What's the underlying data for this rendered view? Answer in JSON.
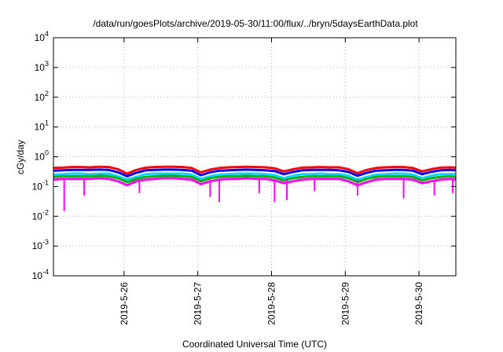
{
  "chart_data": {
    "type": "line",
    "title": "/data/run/goesPlots/archive/2019-05-30/11:00/flux/../bryn/5daysEarthData.plot",
    "xlabel": "Coordinated Universal Time (UTC)",
    "ylabel": "cGy/day",
    "y_scale": "log",
    "ylim": [
      0.0001,
      10000
    ],
    "xlim": [
      "2019-05-25T01:00",
      "2019-05-30T12:00"
    ],
    "grid": true,
    "y_ticks": [
      {
        "base": "10",
        "exp": "-4"
      },
      {
        "base": "10",
        "exp": "-3"
      },
      {
        "base": "10",
        "exp": "-2"
      },
      {
        "base": "10",
        "exp": "-1"
      },
      {
        "base": "10",
        "exp": "0"
      },
      {
        "base": "10",
        "exp": "1"
      },
      {
        "base": "10",
        "exp": "2"
      },
      {
        "base": "10",
        "exp": "3"
      },
      {
        "base": "10",
        "exp": "4"
      }
    ],
    "x_ticks": [
      "2019-5-26",
      "2019-5-27",
      "2019-5-28",
      "2019-5-29",
      "2019-5-30"
    ],
    "x_tick_dates": [
      "2019-05-26T00:00",
      "2019-05-27T00:00",
      "2019-05-28T00:00",
      "2019-05-29T00:00",
      "2019-05-30T00:00"
    ],
    "x": [
      "2019-05-25T01:00",
      "2019-05-25T04:00",
      "2019-05-25T07:00",
      "2019-05-25T10:00",
      "2019-05-25T13:00",
      "2019-05-25T16:00",
      "2019-05-25T19:00",
      "2019-05-25T22:00",
      "2019-05-26T01:00",
      "2019-05-26T04:00",
      "2019-05-26T07:00",
      "2019-05-26T10:00",
      "2019-05-26T13:00",
      "2019-05-26T16:00",
      "2019-05-26T19:00",
      "2019-05-26T22:00",
      "2019-05-27T01:00",
      "2019-05-27T04:00",
      "2019-05-27T07:00",
      "2019-05-27T10:00",
      "2019-05-27T13:00",
      "2019-05-27T16:00",
      "2019-05-27T19:00",
      "2019-05-27T22:00",
      "2019-05-28T01:00",
      "2019-05-28T04:00",
      "2019-05-28T07:00",
      "2019-05-28T10:00",
      "2019-05-28T13:00",
      "2019-05-28T16:00",
      "2019-05-28T19:00",
      "2019-05-28T22:00",
      "2019-05-29T01:00",
      "2019-05-29T04:00",
      "2019-05-29T07:00",
      "2019-05-29T10:00",
      "2019-05-29T13:00",
      "2019-05-29T16:00",
      "2019-05-29T19:00",
      "2019-05-29T22:00",
      "2019-05-30T01:00",
      "2019-05-30T04:00",
      "2019-05-30T07:00",
      "2019-05-30T10:00",
      "2019-05-30T12:00"
    ],
    "series": [
      {
        "color": "#ff0000",
        "values": [
          0.42,
          0.43,
          0.45,
          0.45,
          0.44,
          0.46,
          0.45,
          0.38,
          0.27,
          0.36,
          0.43,
          0.45,
          0.46,
          0.46,
          0.45,
          0.42,
          0.3,
          0.37,
          0.42,
          0.44,
          0.45,
          0.46,
          0.45,
          0.44,
          0.41,
          0.32,
          0.38,
          0.43,
          0.44,
          0.45,
          0.44,
          0.44,
          0.38,
          0.28,
          0.36,
          0.42,
          0.44,
          0.45,
          0.45,
          0.42,
          0.32,
          0.38,
          0.43,
          0.44,
          0.43
        ]
      },
      {
        "color": "#0000ff",
        "values": [
          0.34,
          0.35,
          0.36,
          0.36,
          0.36,
          0.37,
          0.36,
          0.3,
          0.22,
          0.29,
          0.35,
          0.36,
          0.37,
          0.37,
          0.36,
          0.34,
          0.24,
          0.3,
          0.34,
          0.35,
          0.36,
          0.37,
          0.36,
          0.35,
          0.33,
          0.26,
          0.31,
          0.35,
          0.36,
          0.36,
          0.36,
          0.35,
          0.31,
          0.23,
          0.29,
          0.34,
          0.35,
          0.36,
          0.36,
          0.34,
          0.26,
          0.31,
          0.35,
          0.36,
          0.35
        ]
      },
      {
        "color": "#00d8ff",
        "values": [
          0.25,
          0.26,
          0.27,
          0.27,
          0.26,
          0.27,
          0.27,
          0.22,
          0.17,
          0.21,
          0.26,
          0.27,
          0.27,
          0.27,
          0.27,
          0.25,
          0.18,
          0.22,
          0.25,
          0.26,
          0.27,
          0.27,
          0.27,
          0.26,
          0.24,
          0.19,
          0.23,
          0.26,
          0.26,
          0.27,
          0.26,
          0.26,
          0.23,
          0.17,
          0.21,
          0.25,
          0.26,
          0.27,
          0.27,
          0.25,
          0.19,
          0.23,
          0.26,
          0.26,
          0.26
        ]
      },
      {
        "color": "#00b000",
        "values": [
          0.21,
          0.22,
          0.22,
          0.22,
          0.22,
          0.23,
          0.22,
          0.19,
          0.14,
          0.18,
          0.21,
          0.22,
          0.23,
          0.23,
          0.22,
          0.21,
          0.15,
          0.19,
          0.21,
          0.22,
          0.22,
          0.23,
          0.22,
          0.22,
          0.2,
          0.16,
          0.19,
          0.21,
          0.22,
          0.22,
          0.22,
          0.22,
          0.19,
          0.14,
          0.18,
          0.21,
          0.22,
          0.22,
          0.22,
          0.21,
          0.16,
          0.19,
          0.21,
          0.22,
          0.21
        ]
      },
      {
        "color": "#ff00ff",
        "values": [
          0.17,
          0.18,
          0.18,
          0.18,
          0.18,
          0.19,
          0.18,
          0.15,
          0.11,
          0.15,
          0.17,
          0.18,
          0.19,
          0.19,
          0.18,
          0.17,
          0.12,
          0.15,
          0.17,
          0.18,
          0.18,
          0.19,
          0.18,
          0.18,
          0.16,
          0.13,
          0.15,
          0.17,
          0.18,
          0.18,
          0.18,
          0.18,
          0.15,
          0.11,
          0.14,
          0.17,
          0.18,
          0.18,
          0.18,
          0.17,
          0.13,
          0.15,
          0.17,
          0.18,
          0.17
        ]
      }
    ],
    "magenta_dips": [
      {
        "x": "2019-05-25T04:30",
        "y": 0.015
      },
      {
        "x": "2019-05-25T11:00",
        "y": 0.05
      },
      {
        "x": "2019-05-26T05:00",
        "y": 0.06
      },
      {
        "x": "2019-05-27T04:00",
        "y": 0.045
      },
      {
        "x": "2019-05-27T07:00",
        "y": 0.03
      },
      {
        "x": "2019-05-27T20:00",
        "y": 0.06
      },
      {
        "x": "2019-05-28T01:00",
        "y": 0.03
      },
      {
        "x": "2019-05-28T05:00",
        "y": 0.035
      },
      {
        "x": "2019-05-28T14:00",
        "y": 0.07
      },
      {
        "x": "2019-05-29T04:00",
        "y": 0.05
      },
      {
        "x": "2019-05-29T19:00",
        "y": 0.04
      },
      {
        "x": "2019-05-30T05:00",
        "y": 0.05
      },
      {
        "x": "2019-05-30T11:00",
        "y": 0.06
      }
    ]
  }
}
